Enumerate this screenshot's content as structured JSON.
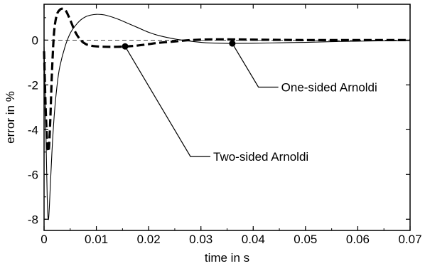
{
  "chart_data": {
    "type": "line",
    "title": "",
    "xlabel": "time  in  s",
    "ylabel": "error  in  %",
    "xlim": [
      0,
      0.07
    ],
    "ylim": [
      -8.5,
      1.6
    ],
    "x_ticks": [
      0,
      0.01,
      0.02,
      0.03,
      0.04,
      0.05,
      0.06,
      0.07
    ],
    "x_tick_labels": [
      "0",
      "0.01",
      "0.02",
      "0.03",
      "0.04",
      "0.05",
      "0.06",
      "0.07"
    ],
    "y_ticks": [
      0,
      -2,
      -4,
      -6,
      -8
    ],
    "y_tick_labels": [
      "0",
      "-2",
      "-4",
      "-6",
      "-8"
    ],
    "grid": false,
    "zero_line": true,
    "series": [
      {
        "name": "Two-sided Arnoldi",
        "style": "thick-dashed",
        "x": [
          0,
          0.0003,
          0.0006,
          0.0009,
          0.0012,
          0.0015,
          0.0019,
          0.0024,
          0.003,
          0.0036,
          0.0042,
          0.005,
          0.006,
          0.007,
          0.008,
          0.009,
          0.01,
          0.012,
          0.014,
          0.016,
          0.018,
          0.02,
          0.022,
          0.025,
          0.028,
          0.032,
          0.036,
          0.04,
          0.045,
          0.05,
          0.055,
          0.06,
          0.065,
          0.07
        ],
        "y": [
          -0.5,
          -3.0,
          -4.6,
          -4.9,
          -3.5,
          -1.5,
          0.3,
          1.1,
          1.35,
          1.4,
          1.3,
          0.9,
          0.35,
          0.0,
          -0.18,
          -0.25,
          -0.28,
          -0.3,
          -0.3,
          -0.28,
          -0.24,
          -0.18,
          -0.12,
          -0.06,
          0.0,
          0.03,
          0.03,
          0.02,
          0.01,
          0.0,
          0.0,
          0.0,
          0.0,
          0.0
        ]
      },
      {
        "name": "One-sided Arnoldi",
        "style": "thin-solid",
        "x": [
          0,
          0.0003,
          0.0006,
          0.0008,
          0.001,
          0.0013,
          0.0016,
          0.002,
          0.0025,
          0.003,
          0.004,
          0.005,
          0.006,
          0.007,
          0.008,
          0.009,
          0.01,
          0.011,
          0.012,
          0.014,
          0.016,
          0.018,
          0.02,
          0.022,
          0.025,
          0.028,
          0.031,
          0.034,
          0.036,
          0.04,
          0.045,
          0.05,
          0.055,
          0.06,
          0.065,
          0.07
        ],
        "y": [
          -0.3,
          -3.5,
          -7.0,
          -8.0,
          -7.5,
          -6.0,
          -4.6,
          -3.2,
          -2.0,
          -1.2,
          -0.3,
          0.3,
          0.65,
          0.9,
          1.05,
          1.12,
          1.15,
          1.14,
          1.1,
          0.95,
          0.75,
          0.55,
          0.35,
          0.2,
          0.05,
          -0.05,
          -0.12,
          -0.14,
          -0.15,
          -0.14,
          -0.12,
          -0.1,
          -0.07,
          -0.05,
          -0.03,
          -0.02
        ]
      }
    ],
    "annotations": [
      {
        "text": "Two-sided Arnoldi",
        "point": [
          0.0155,
          -0.28
        ],
        "elbow": [
          0.028,
          -5.2
        ]
      },
      {
        "text": "One-sided Arnoldi",
        "point": [
          0.036,
          -0.15
        ],
        "elbow": [
          0.041,
          -2.1
        ]
      }
    ]
  }
}
